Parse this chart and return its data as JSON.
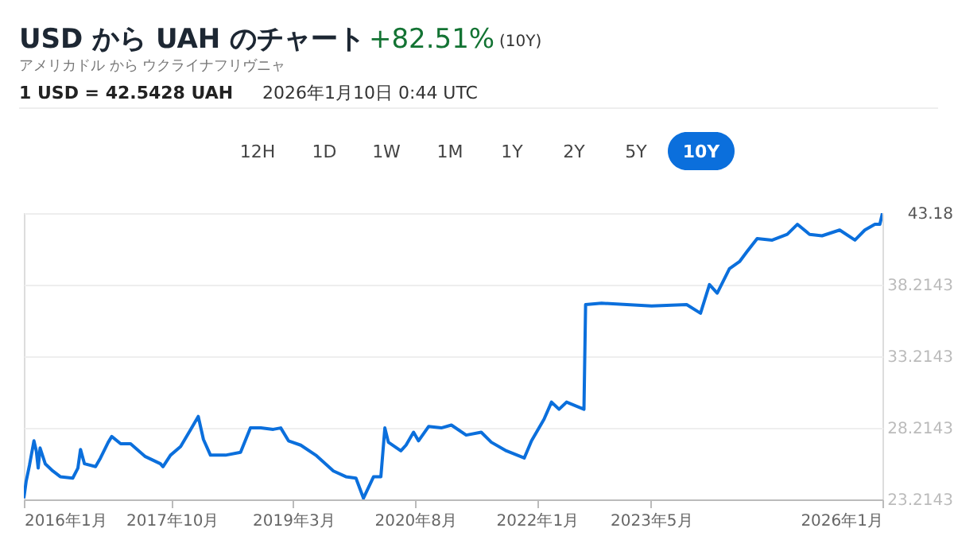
{
  "chart_data": {
    "type": "line",
    "title": "USD から UAH のチャート",
    "subtitle": "アメリカドル から ウクライナフリヴニャ",
    "annotations": [
      "+82.51%",
      "(10Y)",
      "1 USD = 42.5428 UAH",
      "2026年1月10日 0:44 UTC",
      "12H",
      "1D",
      "1W",
      "1M",
      "1Y",
      "2Y",
      "5Y",
      "10Y"
    ],
    "x": [
      "2016-01-10",
      "2016-01-20",
      "2016-02-03",
      "2016-02-22",
      "2016-03-03",
      "2016-03-11",
      "2016-03-19",
      "2016-04-10",
      "2016-05-12",
      "2016-06-13",
      "2016-08-05",
      "2016-08-27",
      "2016-09-07",
      "2016-09-24",
      "2016-11-10",
      "2016-12-01",
      "2017-01-03",
      "2017-01-18",
      "2017-02-25",
      "2017-04-08",
      "2017-06-10",
      "2017-08-13",
      "2017-08-24",
      "2017-09-25",
      "2017-11-07",
      "2017-12-20",
      "2018-01-21",
      "2018-02-12",
      "2018-03-14",
      "2018-05-17",
      "2018-07-20",
      "2018-08-31",
      "2018-10-14",
      "2018-12-06",
      "2019-01-07",
      "2019-02-09",
      "2019-04-02",
      "2019-06-05",
      "2019-08-19",
      "2019-10-11",
      "2019-11-23",
      "2019-12-25",
      "2020-02-06",
      "2020-03-08",
      "2020-03-25",
      "2020-04-09",
      "2020-06-01",
      "2020-06-23",
      "2020-07-25",
      "2020-08-15",
      "2020-09-27",
      "2020-11-20",
      "2021-01-02",
      "2021-03-06",
      "2021-05-09",
      "2021-06-21",
      "2021-08-24",
      "2021-11-08",
      "2021-12-09",
      "2022-01-31",
      "2022-03-04",
      "2022-04-05",
      "2022-05-07",
      "2022-07-20",
      "2022-07-27",
      "2022-10-03",
      "2023-05-04",
      "2023-09-30",
      "2023-11-28",
      "2024-01-05",
      "2024-02-07",
      "2024-03-30",
      "2024-05-12",
      "2024-06-13",
      "2024-07-26",
      "2024-09-28",
      "2024-12-01",
      "2025-01-13",
      "2025-03-06",
      "2025-04-28",
      "2025-07-12",
      "2025-09-15",
      "2025-10-27",
      "2025-12-09",
      "2025-12-30",
      "2026-01-10"
    ],
    "series": [
      {
        "color": "#0b6fdc",
        "values": [
          23.3,
          24.5,
          25.6,
          27.3,
          26.6,
          25.4,
          26.8,
          25.7,
          25.2,
          24.8,
          24.7,
          25.4,
          26.7,
          25.7,
          25.5,
          26.1,
          27.2,
          27.6,
          27.1,
          27.1,
          26.2,
          25.7,
          25.5,
          26.3,
          26.9,
          28.1,
          29.0,
          27.4,
          26.3,
          26.3,
          26.5,
          28.2,
          28.2,
          28.1,
          28.2,
          27.3,
          27.0,
          26.3,
          25.2,
          24.8,
          24.7,
          23.3,
          24.8,
          24.8,
          28.2,
          27.2,
          26.6,
          27.0,
          27.9,
          27.3,
          28.3,
          28.2,
          28.4,
          27.7,
          27.9,
          27.2,
          26.6,
          26.1,
          27.3,
          28.8,
          30.0,
          29.5,
          30.0,
          29.5,
          36.8,
          36.9,
          36.7,
          36.8,
          36.2,
          38.2,
          37.6,
          39.3,
          39.8,
          40.5,
          41.4,
          41.3,
          41.7,
          42.4,
          41.7,
          41.6,
          42.0,
          41.3,
          42.0,
          42.4,
          42.4,
          43.18
        ]
      }
    ],
    "xlim": [
      "2016-01-10",
      "2026-01-10"
    ],
    "xticks": [
      {
        "value": "2016-01-10",
        "label": "2016年1月"
      },
      {
        "value": "2017-10",
        "label": "2017年10月"
      },
      {
        "value": "2019-03",
        "label": "2019年3月"
      },
      {
        "value": "2020-08",
        "label": "2020年8月"
      },
      {
        "value": "2022-01",
        "label": "2022年1月"
      },
      {
        "value": "2023-05",
        "label": "2023年5月"
      },
      {
        "value": "2026-01-10",
        "label": "2026年1月"
      }
    ],
    "ylim": [
      23.2143,
      43.18
    ],
    "yticks": [
      23.2143,
      28.2143,
      33.2143,
      38.2143,
      43.18
    ],
    "grid": "y",
    "marker": "none",
    "line_style": "solid"
  }
}
